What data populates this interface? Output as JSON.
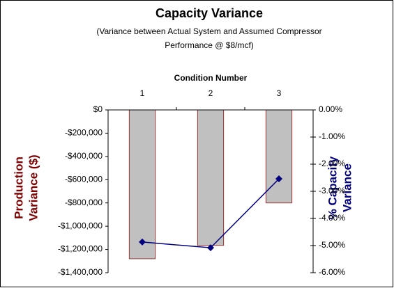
{
  "chart_data": {
    "type": "bar",
    "title": "Capacity Variance",
    "subtitle": [
      "(Variance between Actual System and Assumed Compressor",
      "Performance @ $8/mcf)"
    ],
    "xlabel": "Condition Number",
    "ylabel": [
      "Production",
      "Variance ($)"
    ],
    "y2label": [
      "% Capacity",
      "Variance"
    ],
    "categories": [
      "1",
      "2",
      "3"
    ],
    "series": [
      {
        "type": "bar",
        "color": "#c0c0c0",
        "edge": "#993333",
        "values": [
          -1280000,
          -1165000,
          -800000
        ]
      },
      {
        "type": "line",
        "axis": "y2",
        "color": "#000080",
        "values": [
          -4.87,
          -5.08,
          -2.54
        ]
      }
    ],
    "ylim": [
      -1400000,
      0
    ],
    "yticks": [
      {
        "value": 0,
        "label": "$0"
      },
      {
        "value": -200000,
        "label": "-$200,000"
      },
      {
        "value": -400000,
        "label": "-$400,000"
      },
      {
        "value": -600000,
        "label": "-$600,000"
      },
      {
        "value": -800000,
        "label": "-$800,000"
      },
      {
        "value": -1000000,
        "label": "-$1,000,000"
      },
      {
        "value": -1200000,
        "label": "-$1,200,000"
      },
      {
        "value": -1400000,
        "label": "-$1,400,000"
      }
    ],
    "y2lim": [
      -6,
      0
    ],
    "y2ticks": [
      {
        "value": 0,
        "label": "0.00%"
      },
      {
        "value": -1,
        "label": "-1.00%"
      },
      {
        "value": -2,
        "label": "-2.00%"
      },
      {
        "value": -3,
        "label": "-3.00%"
      },
      {
        "value": -4,
        "label": "-4.00%"
      },
      {
        "value": -5,
        "label": "-5.00%"
      },
      {
        "value": -6,
        "label": "-6.00%"
      }
    ],
    "ylabel_color": "#800000",
    "y2label_color": "#000080"
  }
}
